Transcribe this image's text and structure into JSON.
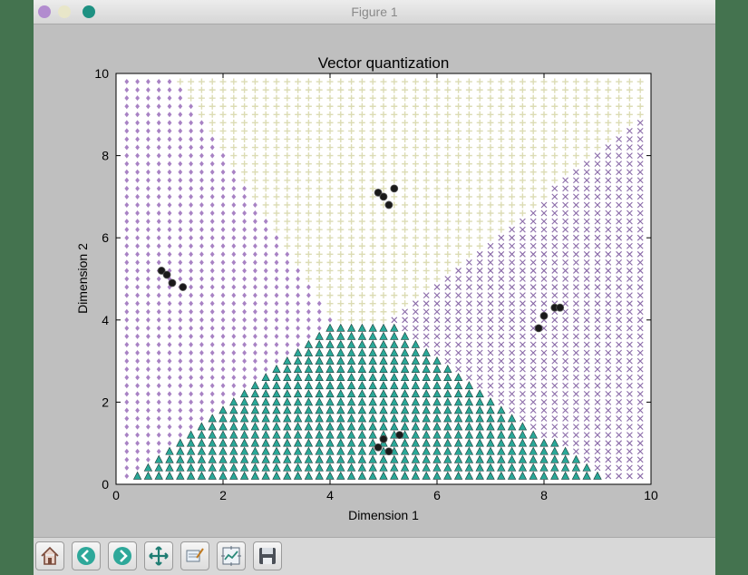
{
  "window": {
    "title": "Figure 1"
  },
  "toolbar": {
    "buttons": [
      {
        "name": "home-button",
        "icon": "home-icon"
      },
      {
        "name": "back-button",
        "icon": "back-arrow-icon"
      },
      {
        "name": "forward-button",
        "icon": "forward-arrow-icon"
      },
      {
        "name": "pan-button",
        "icon": "move-arrows-icon"
      },
      {
        "name": "zoom-button",
        "icon": "zoom-rect-icon"
      },
      {
        "name": "configure-subplots-button",
        "icon": "subplots-icon"
      },
      {
        "name": "save-button",
        "icon": "floppy-disk-icon"
      }
    ]
  },
  "chart_data": {
    "type": "scatter",
    "title": "Vector quantization",
    "xlabel": "Dimension 1",
    "ylabel": "Dimension 2",
    "xlim": [
      0,
      10
    ],
    "ylim": [
      0,
      10
    ],
    "xticks": [
      "0",
      "2",
      "4",
      "6",
      "8",
      "10"
    ],
    "yticks": [
      "0",
      "2",
      "4",
      "6",
      "8",
      "10"
    ],
    "grid": false,
    "background_regions": [
      {
        "marker": "diamond",
        "color": "#a882c4",
        "prototype": [
          1.0,
          5.0
        ]
      },
      {
        "marker": "plus",
        "color": "#dcdcb4",
        "prototype": [
          5.1,
          7.0
        ]
      },
      {
        "marker": "x",
        "color": "#8a6aa8",
        "prototype": [
          8.1,
          4.1
        ]
      },
      {
        "marker": "triangle",
        "color": "#2aa898",
        "prototype": [
          5.1,
          1.0
        ]
      }
    ],
    "series": [
      {
        "marker": "circle",
        "color": "#1a1a1a",
        "x": [
          0.85,
          0.95,
          1.05,
          1.25,
          4.9,
          5.0,
          5.1,
          5.2,
          7.9,
          8.0,
          8.2,
          8.3,
          4.9,
          5.0,
          5.1,
          5.3
        ],
        "y": [
          5.2,
          5.1,
          4.9,
          4.8,
          7.1,
          7.0,
          6.8,
          7.2,
          3.8,
          4.1,
          4.3,
          4.3,
          0.9,
          1.1,
          0.8,
          1.2
        ]
      }
    ]
  }
}
